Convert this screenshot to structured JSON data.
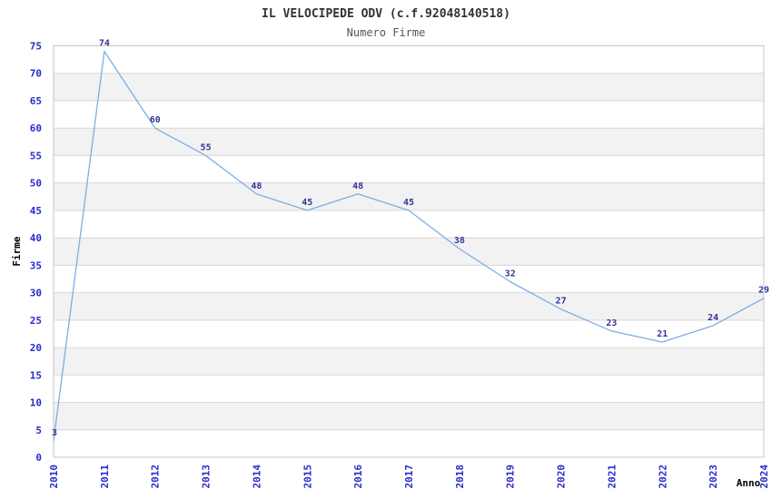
{
  "chart_data": {
    "type": "line",
    "title": "IL VELOCIPEDE ODV (c.f.92048140518)",
    "subtitle": "Numero Firme",
    "xlabel": "Anno",
    "ylabel": "Firme",
    "categories": [
      "2010",
      "2011",
      "2012",
      "2013",
      "2014",
      "2015",
      "2016",
      "2017",
      "2018",
      "2019",
      "2020",
      "2021",
      "2022",
      "2023",
      "2024"
    ],
    "values": [
      3,
      74,
      60,
      55,
      48,
      45,
      48,
      45,
      38,
      32,
      27,
      23,
      21,
      24,
      29
    ],
    "ylim": [
      0,
      75
    ],
    "ytick_step": 5,
    "grid": "horizontal gridlines with alternating bands",
    "legend": "none",
    "colors": {
      "line": "#7CAFE2",
      "point_label": "#333399",
      "axis_tick_label": "#2A2ACC",
      "band_alt": "#F2F2F2",
      "band_base": "#FFFFFF",
      "gridline": "#D8D8D8",
      "plot_border": "#C6C6C6",
      "title_text": "#333333",
      "subtitle_text": "#555555",
      "axis_title_text": "#000000",
      "background": "#FFFFFF"
    }
  }
}
